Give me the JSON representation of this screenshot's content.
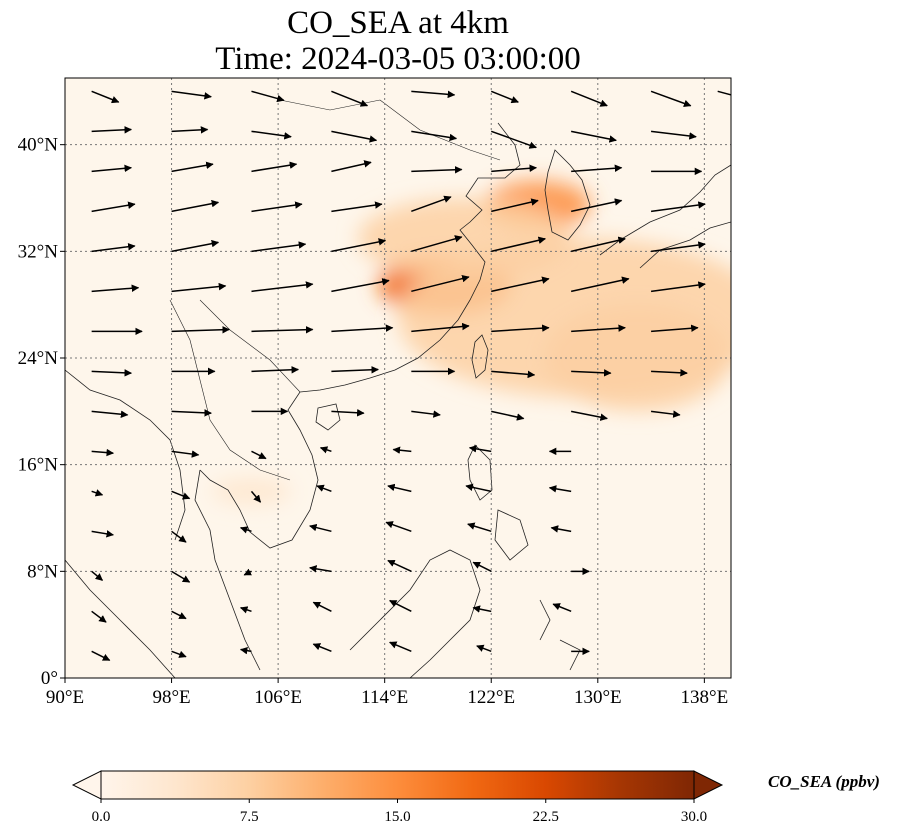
{
  "title": {
    "line1": "CO_SEA at 4km",
    "line2": "Time: 2024-03-05 03:00:00"
  },
  "map": {
    "extent": {
      "lon": [
        90,
        140
      ],
      "lat": [
        0,
        45
      ]
    },
    "lon_ticks": [
      {
        "value": 90,
        "label": "90°E"
      },
      {
        "value": 98,
        "label": "98°E"
      },
      {
        "value": 106,
        "label": "106°E"
      },
      {
        "value": 114,
        "label": "114°E"
      },
      {
        "value": 122,
        "label": "122°E"
      },
      {
        "value": 130,
        "label": "130°E"
      },
      {
        "value": 138,
        "label": "138°E"
      }
    ],
    "lat_ticks": [
      {
        "value": 0,
        "label": "0°"
      },
      {
        "value": 8,
        "label": "8°N"
      },
      {
        "value": 16,
        "label": "16°N"
      },
      {
        "value": 24,
        "label": "24°N"
      },
      {
        "value": 32,
        "label": "32°N"
      },
      {
        "value": 40,
        "label": "40°N"
      }
    ],
    "gridlines": true,
    "background_color": "#fef6eb",
    "coast_color": "#222222",
    "plumes": [
      {
        "lon": 118.5,
        "lat": 29.5,
        "rx": 5,
        "ry": 2.2,
        "level": 18
      },
      {
        "lon": 125.5,
        "lat": 35.5,
        "rx": 4,
        "ry": 1.8,
        "level": 15
      },
      {
        "lon": 129,
        "lat": 27,
        "rx": 14,
        "ry": 6,
        "level": 6
      },
      {
        "lon": 133,
        "lat": 24,
        "rx": 7,
        "ry": 4,
        "level": 8
      },
      {
        "lon": 120,
        "lat": 33,
        "rx": 8,
        "ry": 3,
        "level": 6
      },
      {
        "lon": 104,
        "lat": 14,
        "rx": 3,
        "ry": 1,
        "level": 4
      }
    ]
  },
  "wind_field": {
    "description": "arrows",
    "vectors": [
      [
        92,
        44,
        1.5,
        -0.6
      ],
      [
        98,
        44,
        2.2,
        -0.3
      ],
      [
        104,
        44,
        1.8,
        -0.5
      ],
      [
        110,
        44,
        2,
        -0.8
      ],
      [
        116,
        44,
        2.4,
        -0.2
      ],
      [
        122,
        44,
        1.5,
        -0.6
      ],
      [
        128,
        44,
        2,
        -0.8
      ],
      [
        134,
        44,
        2.2,
        -0.8
      ],
      [
        139,
        44,
        1.5,
        -0.4
      ],
      [
        92,
        41,
        2.2,
        0.1
      ],
      [
        98,
        41,
        2,
        0.1
      ],
      [
        104,
        41,
        2.2,
        -0.3
      ],
      [
        110,
        41,
        2.5,
        -0.5
      ],
      [
        116,
        41,
        2.5,
        -0.4
      ],
      [
        122,
        41,
        2.5,
        -0.9
      ],
      [
        128,
        41,
        2.5,
        -0.5
      ],
      [
        134,
        41,
        2.5,
        -0.3
      ],
      [
        92,
        38,
        2.2,
        0.2
      ],
      [
        98,
        38,
        2.3,
        0.4
      ],
      [
        104,
        38,
        2.5,
        0.4
      ],
      [
        110,
        38,
        2.2,
        0.5
      ],
      [
        116,
        38,
        2.8,
        0.1
      ],
      [
        122,
        38,
        2.5,
        0.2
      ],
      [
        128,
        38,
        2.8,
        0.2
      ],
      [
        134,
        38,
        2.8,
        0
      ],
      [
        92,
        35,
        2.4,
        0.4
      ],
      [
        98,
        35,
        2.6,
        0.5
      ],
      [
        104,
        35,
        2.8,
        0.4
      ],
      [
        110,
        35,
        2.8,
        0.4
      ],
      [
        116,
        35,
        2.2,
        0.8
      ],
      [
        122,
        35,
        2.6,
        0.6
      ],
      [
        128,
        35,
        2.8,
        0.6
      ],
      [
        134,
        35,
        3,
        0.4
      ],
      [
        92,
        32,
        2.4,
        0.3
      ],
      [
        98,
        32,
        2.6,
        0.5
      ],
      [
        104,
        32,
        3,
        0.4
      ],
      [
        110,
        32,
        3,
        0.6
      ],
      [
        116,
        32,
        2.8,
        0.8
      ],
      [
        122,
        32,
        3,
        0.7
      ],
      [
        128,
        32,
        3,
        0.7
      ],
      [
        134,
        32,
        3,
        0.4
      ],
      [
        92,
        29,
        2.6,
        0.2
      ],
      [
        98,
        29,
        3,
        0.3
      ],
      [
        104,
        29,
        3.4,
        0.4
      ],
      [
        110,
        29,
        3.2,
        0.6
      ],
      [
        116,
        29,
        3.2,
        0.8
      ],
      [
        122,
        29,
        3.2,
        0.7
      ],
      [
        128,
        29,
        3.2,
        0.7
      ],
      [
        134,
        29,
        3,
        0.4
      ],
      [
        92,
        26,
        2.8,
        0
      ],
      [
        98,
        26,
        3.2,
        0.1
      ],
      [
        104,
        26,
        3.4,
        0.1
      ],
      [
        110,
        26,
        3.4,
        0.2
      ],
      [
        116,
        26,
        3.2,
        0.3
      ],
      [
        122,
        26,
        3.2,
        0.2
      ],
      [
        128,
        26,
        3,
        0.2
      ],
      [
        134,
        26,
        2.6,
        0.2
      ],
      [
        92,
        23,
        2.2,
        -0.1
      ],
      [
        98,
        23,
        2.4,
        0
      ],
      [
        104,
        23,
        2.6,
        0.1
      ],
      [
        110,
        23,
        2.6,
        0.1
      ],
      [
        116,
        23,
        2.4,
        0
      ],
      [
        122,
        23,
        2.4,
        -0.2
      ],
      [
        128,
        23,
        2.2,
        -0.1
      ],
      [
        134,
        23,
        2,
        -0.1
      ],
      [
        92,
        20,
        2,
        -0.2
      ],
      [
        98,
        20,
        2.2,
        -0.1
      ],
      [
        104,
        20,
        2,
        0
      ],
      [
        110,
        20,
        1.8,
        -0.1
      ],
      [
        116,
        20,
        1.6,
        -0.2
      ],
      [
        122,
        20,
        1.8,
        -0.4
      ],
      [
        128,
        20,
        2,
        -0.4
      ],
      [
        134,
        20,
        1.6,
        -0.2
      ],
      [
        92,
        17,
        1.2,
        -0.1
      ],
      [
        98,
        17,
        1.5,
        -0.2
      ],
      [
        104,
        17,
        0.8,
        -0.4
      ],
      [
        110,
        17,
        -0.6,
        0.2
      ],
      [
        116,
        17,
        -1,
        0.1
      ],
      [
        122,
        17,
        -1.2,
        0.2
      ],
      [
        128,
        17,
        -1.2,
        0
      ],
      [
        92,
        14,
        0.6,
        -0.2
      ],
      [
        98,
        14,
        1,
        -0.4
      ],
      [
        104,
        14,
        0.5,
        -0.6
      ],
      [
        110,
        14,
        -0.8,
        0.3
      ],
      [
        116,
        14,
        -1.3,
        0.3
      ],
      [
        122,
        14,
        -1.4,
        0.3
      ],
      [
        128,
        14,
        -1.2,
        0.2
      ],
      [
        92,
        11,
        1.2,
        -0.2
      ],
      [
        98,
        11,
        0.8,
        -0.6
      ],
      [
        104,
        11,
        -0.6,
        0.2
      ],
      [
        110,
        11,
        -1.2,
        0.3
      ],
      [
        116,
        11,
        -1.4,
        0.5
      ],
      [
        122,
        11,
        -1.3,
        0.4
      ],
      [
        128,
        11,
        -1.1,
        0.2
      ],
      [
        92,
        8,
        0.6,
        -0.5
      ],
      [
        98,
        8,
        1,
        -0.6
      ],
      [
        104,
        8,
        -0.4,
        -0.2
      ],
      [
        110,
        8,
        -1.2,
        0.2
      ],
      [
        116,
        8,
        -1.3,
        0.6
      ],
      [
        122,
        8,
        -1,
        0.5
      ],
      [
        128,
        8,
        1,
        0
      ],
      [
        92,
        5,
        0.8,
        -0.6
      ],
      [
        98,
        5,
        0.8,
        -0.4
      ],
      [
        104,
        5,
        -0.6,
        0.2
      ],
      [
        110,
        5,
        -1,
        0.5
      ],
      [
        116,
        5,
        -1.2,
        0.6
      ],
      [
        122,
        5,
        -1,
        0.2
      ],
      [
        128,
        5,
        -1,
        0.4
      ],
      [
        92,
        2,
        1,
        -0.5
      ],
      [
        98,
        2,
        0.8,
        -0.3
      ],
      [
        104,
        2,
        -0.6,
        0.1
      ],
      [
        110,
        2,
        -1,
        0.4
      ],
      [
        116,
        2,
        -1.2,
        0.5
      ],
      [
        122,
        2,
        -0.8,
        0.3
      ],
      [
        128,
        2,
        1,
        0
      ]
    ]
  },
  "colorbar": {
    "label": "CO_SEA (ppbv)",
    "min": 0.0,
    "max": 30.0,
    "extend": "both",
    "ticks": [
      {
        "value": 0.0,
        "label": "0.0"
      },
      {
        "value": 7.5,
        "label": "7.5"
      },
      {
        "value": 15.0,
        "label": "15.0"
      },
      {
        "value": 22.5,
        "label": "22.5"
      },
      {
        "value": 30.0,
        "label": "30.0"
      }
    ],
    "colormap": [
      "#fff5eb",
      "#fee6ce",
      "#fdd0a2",
      "#fdae6b",
      "#fd8d3c",
      "#f16913",
      "#d94801",
      "#a63603",
      "#7f2704"
    ],
    "over_color": "#7f2704",
    "under_color": "#fff5eb"
  }
}
